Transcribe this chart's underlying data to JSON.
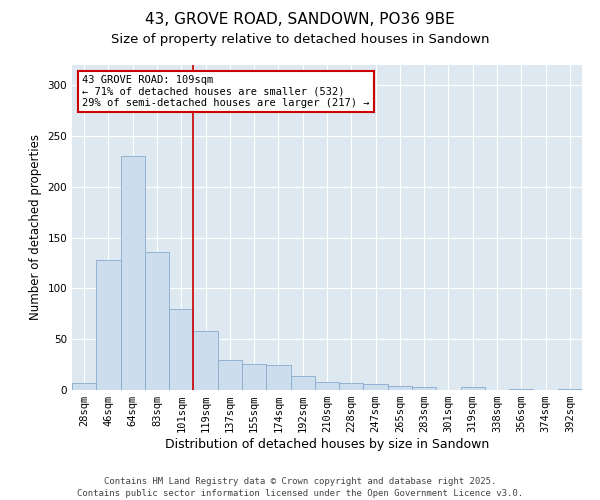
{
  "title": "43, GROVE ROAD, SANDOWN, PO36 9BE",
  "subtitle": "Size of property relative to detached houses in Sandown",
  "xlabel": "Distribution of detached houses by size in Sandown",
  "ylabel": "Number of detached properties",
  "categories": [
    "28sqm",
    "46sqm",
    "64sqm",
    "83sqm",
    "101sqm",
    "119sqm",
    "137sqm",
    "155sqm",
    "174sqm",
    "192sqm",
    "210sqm",
    "228sqm",
    "247sqm",
    "265sqm",
    "283sqm",
    "301sqm",
    "319sqm",
    "338sqm",
    "356sqm",
    "374sqm",
    "392sqm"
  ],
  "values": [
    7,
    128,
    230,
    136,
    80,
    58,
    30,
    26,
    25,
    14,
    8,
    7,
    6,
    4,
    3,
    0,
    3,
    0,
    1,
    0,
    1
  ],
  "bar_color": "#ccdded",
  "bar_edge_color": "#88aacc",
  "vline_x": 4.5,
  "vline_color": "#cc0000",
  "annotation_text": "43 GROVE ROAD: 109sqm\n← 71% of detached houses are smaller (532)\n29% of semi-detached houses are larger (217) →",
  "annotation_box_color": "#ffffff",
  "annotation_box_edge": "#cc0000",
  "ylim": [
    0,
    320
  ],
  "yticks": [
    0,
    50,
    100,
    150,
    200,
    250,
    300
  ],
  "plot_bg_color": "#dde8f0",
  "footer_line1": "Contains HM Land Registry data © Crown copyright and database right 2025.",
  "footer_line2": "Contains public sector information licensed under the Open Government Licence v3.0.",
  "title_fontsize": 11,
  "subtitle_fontsize": 9.5,
  "tick_fontsize": 7.5,
  "xlabel_fontsize": 9,
  "ylabel_fontsize": 8.5,
  "annotation_fontsize": 7.5,
  "footer_fontsize": 6.5
}
